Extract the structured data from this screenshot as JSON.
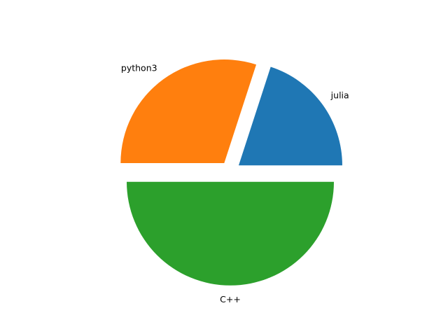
{
  "chart_data": {
    "type": "pie",
    "labels": [
      "julia",
      "python3",
      "C++"
    ],
    "values": [
      20,
      30,
      50
    ],
    "explode": [
      0.1,
      0.1,
      0.1
    ],
    "colors": [
      "#1f77b4",
      "#ff7f0e",
      "#2ca02c"
    ],
    "start_angle_deg": 0,
    "direction": "counterclockwise",
    "title": "",
    "legend": "none"
  }
}
